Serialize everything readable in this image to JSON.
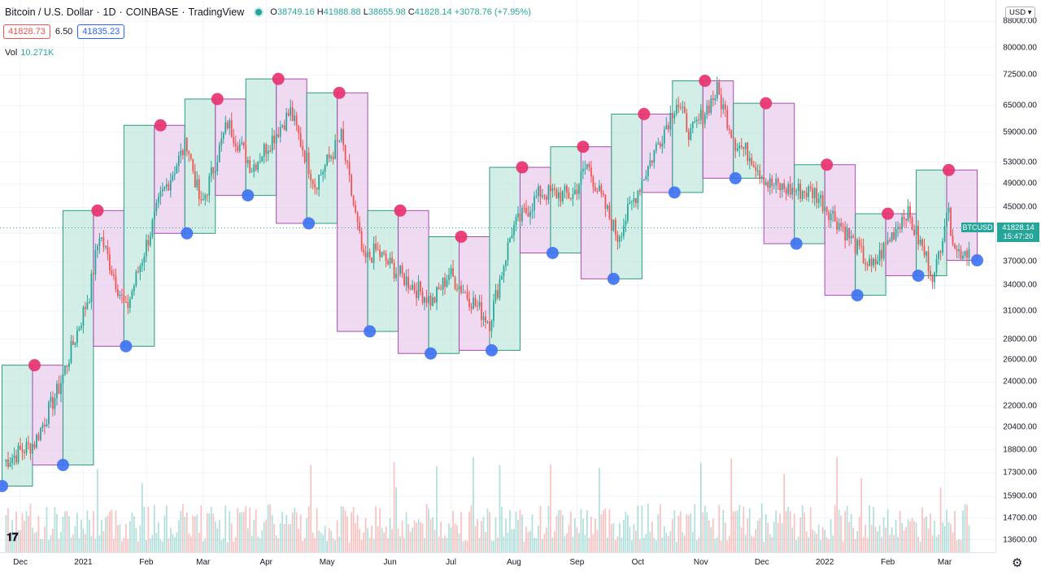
{
  "header": {
    "symbol_title": "Bitcoin / U.S. Dollar",
    "interval": "1D",
    "exchange": "COINBASE",
    "provider": "TradingView",
    "open_label": "O",
    "open": "38749.16",
    "high_label": "H",
    "high": "41988.88",
    "low_label": "L",
    "low": "38655.98",
    "close_label": "C",
    "close": "41828.14",
    "change": "+3078.76 (+7.95%)",
    "bid": "41828.73",
    "spread": "6.50",
    "ask": "41835.23",
    "vol_label": "Vol",
    "vol_value": "10.271K",
    "currency": "USD"
  },
  "colors": {
    "up": "#26a69a",
    "down": "#ef5350",
    "up_box": "#b6e3d6",
    "down_box": "#e7c3ea",
    "top_marker": "#e8336f",
    "bottom_marker": "#3f73f2",
    "axis_text": "#131722"
  },
  "last_price_label": {
    "symbol": "BTCUSD",
    "price": "41828.14",
    "countdown": "15:47:20"
  },
  "y_axis_ticks": [
    "88000.00",
    "80000.00",
    "72500.00",
    "65000.00",
    "59000.00",
    "53000.00",
    "49000.00",
    "45000.00",
    "41000.00",
    "37000.00",
    "34000.00",
    "31000.00",
    "28000.00",
    "26000.00",
    "24000.00",
    "22000.00",
    "20400.00",
    "18800.00",
    "17300.00",
    "15900.00",
    "14700.00",
    "13600.00"
  ],
  "x_axis_ticks": [
    "Dec",
    "2021",
    "Feb",
    "Mar",
    "Apr",
    "May",
    "Jun",
    "Jul",
    "Aug",
    "Sep",
    "Oct",
    "Nov",
    "Dec",
    "2022",
    "Feb",
    "Mar"
  ],
  "chart_data": {
    "type": "line",
    "title": "Bitcoin / U.S. Dollar · 1D · COINBASE",
    "scale": "log",
    "ylim": [
      13000,
      95000
    ],
    "x_range": [
      "2020-11-21",
      "2022-03-26"
    ],
    "series": [
      {
        "name": "BTCUSD",
        "x": [
          "2020-11-23",
          "2020-12-08",
          "2020-12-20",
          "2021-01-04",
          "2021-01-09",
          "2021-01-22",
          "2021-02-08",
          "2021-02-21",
          "2021-02-28",
          "2021-03-13",
          "2021-03-25",
          "2021-04-13",
          "2021-04-25",
          "2021-05-08",
          "2021-05-19",
          "2021-05-25",
          "2021-06-05",
          "2021-06-22",
          "2021-06-30",
          "2021-07-20",
          "2021-07-31",
          "2021-08-14",
          "2021-08-30",
          "2021-09-06",
          "2021-09-21",
          "2021-10-01",
          "2021-10-20",
          "2021-10-27",
          "2021-11-09",
          "2021-11-18",
          "2021-11-26",
          "2021-12-04",
          "2021-12-14",
          "2021-12-27",
          "2022-01-10",
          "2022-01-24",
          "2022-02-10",
          "2022-02-24",
          "2022-03-02",
          "2022-03-07",
          "2022-03-13"
        ],
        "values": [
          18000,
          19300,
          23500,
          33000,
          41000,
          31000,
          46500,
          57000,
          45000,
          61000,
          52000,
          63500,
          49000,
          58000,
          37000,
          38500,
          35500,
          32000,
          35500,
          29800,
          41500,
          47500,
          47000,
          52500,
          40500,
          48000,
          66000,
          58500,
          68500,
          57000,
          54000,
          49000,
          48000,
          47500,
          41800,
          36000,
          44500,
          35000,
          44800,
          38300,
          38700
        ]
      }
    ],
    "box_ranges": [
      {
        "start": "2020-11-22",
        "end": "2020-12-07",
        "low": 16500,
        "high": 25500,
        "dir": "up"
      },
      {
        "start": "2020-12-07",
        "end": "2020-12-22",
        "low": 17800,
        "high": 25500,
        "dir": "down"
      },
      {
        "start": "2020-12-22",
        "end": "2021-01-06",
        "low": 17800,
        "high": 44500,
        "dir": "up"
      },
      {
        "start": "2021-01-06",
        "end": "2021-01-21",
        "low": 27300,
        "high": 44500,
        "dir": "down"
      },
      {
        "start": "2021-01-21",
        "end": "2021-02-05",
        "low": 27300,
        "high": 60500,
        "dir": "up"
      },
      {
        "start": "2021-02-05",
        "end": "2021-02-20",
        "low": 41000,
        "high": 60500,
        "dir": "down"
      },
      {
        "start": "2021-02-20",
        "end": "2021-03-07",
        "low": 41000,
        "high": 66500,
        "dir": "up"
      },
      {
        "start": "2021-03-07",
        "end": "2021-03-22",
        "low": 47000,
        "high": 66500,
        "dir": "down"
      },
      {
        "start": "2021-03-22",
        "end": "2021-04-06",
        "low": 47000,
        "high": 71500,
        "dir": "up"
      },
      {
        "start": "2021-04-06",
        "end": "2021-04-21",
        "low": 42500,
        "high": 71500,
        "dir": "down"
      },
      {
        "start": "2021-04-21",
        "end": "2021-05-06",
        "low": 42500,
        "high": 68000,
        "dir": "up"
      },
      {
        "start": "2021-05-06",
        "end": "2021-05-21",
        "low": 28800,
        "high": 68000,
        "dir": "down"
      },
      {
        "start": "2021-05-21",
        "end": "2021-06-05",
        "low": 28800,
        "high": 44500,
        "dir": "up"
      },
      {
        "start": "2021-06-05",
        "end": "2021-06-20",
        "low": 26600,
        "high": 44500,
        "dir": "down"
      },
      {
        "start": "2021-06-20",
        "end": "2021-07-05",
        "low": 26600,
        "high": 40500,
        "dir": "up"
      },
      {
        "start": "2021-07-05",
        "end": "2021-07-20",
        "low": 26900,
        "high": 40500,
        "dir": "down"
      },
      {
        "start": "2021-07-20",
        "end": "2021-08-04",
        "low": 26900,
        "high": 52000,
        "dir": "up"
      },
      {
        "start": "2021-08-04",
        "end": "2021-08-19",
        "low": 38200,
        "high": 52000,
        "dir": "down"
      },
      {
        "start": "2021-08-19",
        "end": "2021-09-03",
        "low": 38200,
        "high": 56000,
        "dir": "up"
      },
      {
        "start": "2021-09-03",
        "end": "2021-09-18",
        "low": 34800,
        "high": 56000,
        "dir": "down"
      },
      {
        "start": "2021-09-18",
        "end": "2021-10-03",
        "low": 34800,
        "high": 63000,
        "dir": "up"
      },
      {
        "start": "2021-10-03",
        "end": "2021-10-18",
        "low": 47500,
        "high": 63000,
        "dir": "down"
      },
      {
        "start": "2021-10-18",
        "end": "2021-11-02",
        "low": 47500,
        "high": 71000,
        "dir": "up"
      },
      {
        "start": "2021-11-02",
        "end": "2021-11-17",
        "low": 50000,
        "high": 71000,
        "dir": "down"
      },
      {
        "start": "2021-11-17",
        "end": "2021-12-02",
        "low": 50000,
        "high": 65500,
        "dir": "up"
      },
      {
        "start": "2021-12-02",
        "end": "2021-12-17",
        "low": 39500,
        "high": 65500,
        "dir": "down"
      },
      {
        "start": "2021-12-17",
        "end": "2022-01-01",
        "low": 39500,
        "high": 52500,
        "dir": "up"
      },
      {
        "start": "2022-01-01",
        "end": "2022-01-16",
        "low": 32800,
        "high": 52500,
        "dir": "down"
      },
      {
        "start": "2022-01-16",
        "end": "2022-01-31",
        "low": 32800,
        "high": 44000,
        "dir": "up"
      },
      {
        "start": "2022-01-31",
        "end": "2022-02-15",
        "low": 35200,
        "high": 44000,
        "dir": "down"
      },
      {
        "start": "2022-02-15",
        "end": "2022-03-02",
        "low": 35200,
        "high": 51500,
        "dir": "up"
      },
      {
        "start": "2022-03-02",
        "end": "2022-03-17",
        "low": 37200,
        "high": 51500,
        "dir": "down"
      }
    ],
    "swing_highs": [
      {
        "x": "2020-12-08",
        "y": 25500
      },
      {
        "x": "2021-01-08",
        "y": 44500
      },
      {
        "x": "2021-02-08",
        "y": 60500
      },
      {
        "x": "2021-03-08",
        "y": 66500
      },
      {
        "x": "2021-04-07",
        "y": 71500
      },
      {
        "x": "2021-05-07",
        "y": 68000
      },
      {
        "x": "2021-06-06",
        "y": 44500
      },
      {
        "x": "2021-07-06",
        "y": 40500
      },
      {
        "x": "2021-08-05",
        "y": 52000
      },
      {
        "x": "2021-09-04",
        "y": 56000
      },
      {
        "x": "2021-10-04",
        "y": 63000
      },
      {
        "x": "2021-11-03",
        "y": 71000
      },
      {
        "x": "2021-12-03",
        "y": 65500
      },
      {
        "x": "2022-01-02",
        "y": 52500
      },
      {
        "x": "2022-02-01",
        "y": 44000
      },
      {
        "x": "2022-03-03",
        "y": 51500
      }
    ],
    "swing_lows": [
      {
        "x": "2020-11-22",
        "y": 16500
      },
      {
        "x": "2020-12-22",
        "y": 17800
      },
      {
        "x": "2021-01-22",
        "y": 27300
      },
      {
        "x": "2021-02-21",
        "y": 41000
      },
      {
        "x": "2021-03-23",
        "y": 47000
      },
      {
        "x": "2021-04-22",
        "y": 42500
      },
      {
        "x": "2021-05-22",
        "y": 28800
      },
      {
        "x": "2021-06-21",
        "y": 26600
      },
      {
        "x": "2021-07-21",
        "y": 26900
      },
      {
        "x": "2021-08-20",
        "y": 38200
      },
      {
        "x": "2021-09-19",
        "y": 34800
      },
      {
        "x": "2021-10-19",
        "y": 47500
      },
      {
        "x": "2021-11-18",
        "y": 50000
      },
      {
        "x": "2021-12-18",
        "y": 39500
      },
      {
        "x": "2022-01-17",
        "y": 32800
      },
      {
        "x": "2022-02-16",
        "y": 35200
      },
      {
        "x": "2022-03-17",
        "y": 37200
      }
    ],
    "last_price": 41828.14,
    "grid": true
  }
}
